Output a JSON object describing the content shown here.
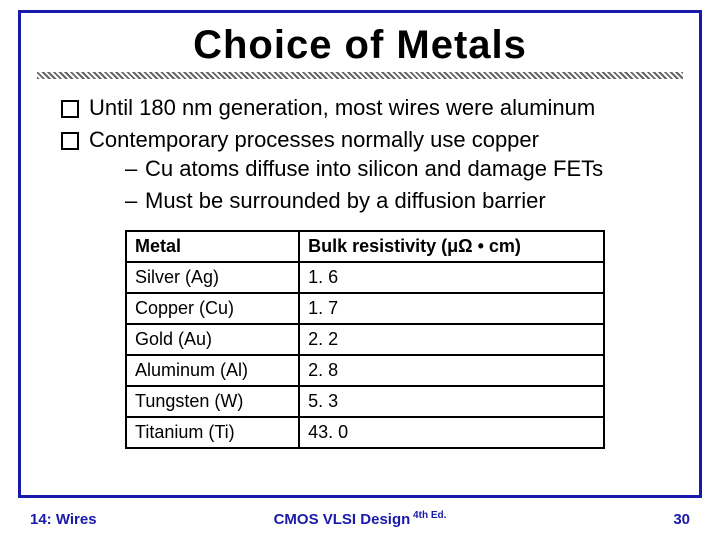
{
  "title": "Choice of Metals",
  "bullets": [
    "Until 180 nm generation, most wires were aluminum",
    "Contemporary processes normally use copper"
  ],
  "sub_bullets": [
    "Cu atoms diffuse into silicon and damage FETs",
    "Must be surrounded by a diffusion barrier"
  ],
  "table": {
    "header_metal": "Metal",
    "header_resistivity": "Bulk resistivity (μΩ • cm)",
    "rows": [
      {
        "metal": "Silver (Ag)",
        "value": "1. 6"
      },
      {
        "metal": "Copper (Cu)",
        "value": "1. 7"
      },
      {
        "metal": "Gold (Au)",
        "value": "2. 2"
      },
      {
        "metal": "Aluminum (Al)",
        "value": "2. 8"
      },
      {
        "metal": "Tungsten (W)",
        "value": "5. 3"
      },
      {
        "metal": "Titanium (Ti)",
        "value": "43. 0"
      }
    ]
  },
  "footer": {
    "left": "14: Wires",
    "center_main": "CMOS VLSI Design",
    "center_sup": " 4th Ed.",
    "page": "30"
  }
}
